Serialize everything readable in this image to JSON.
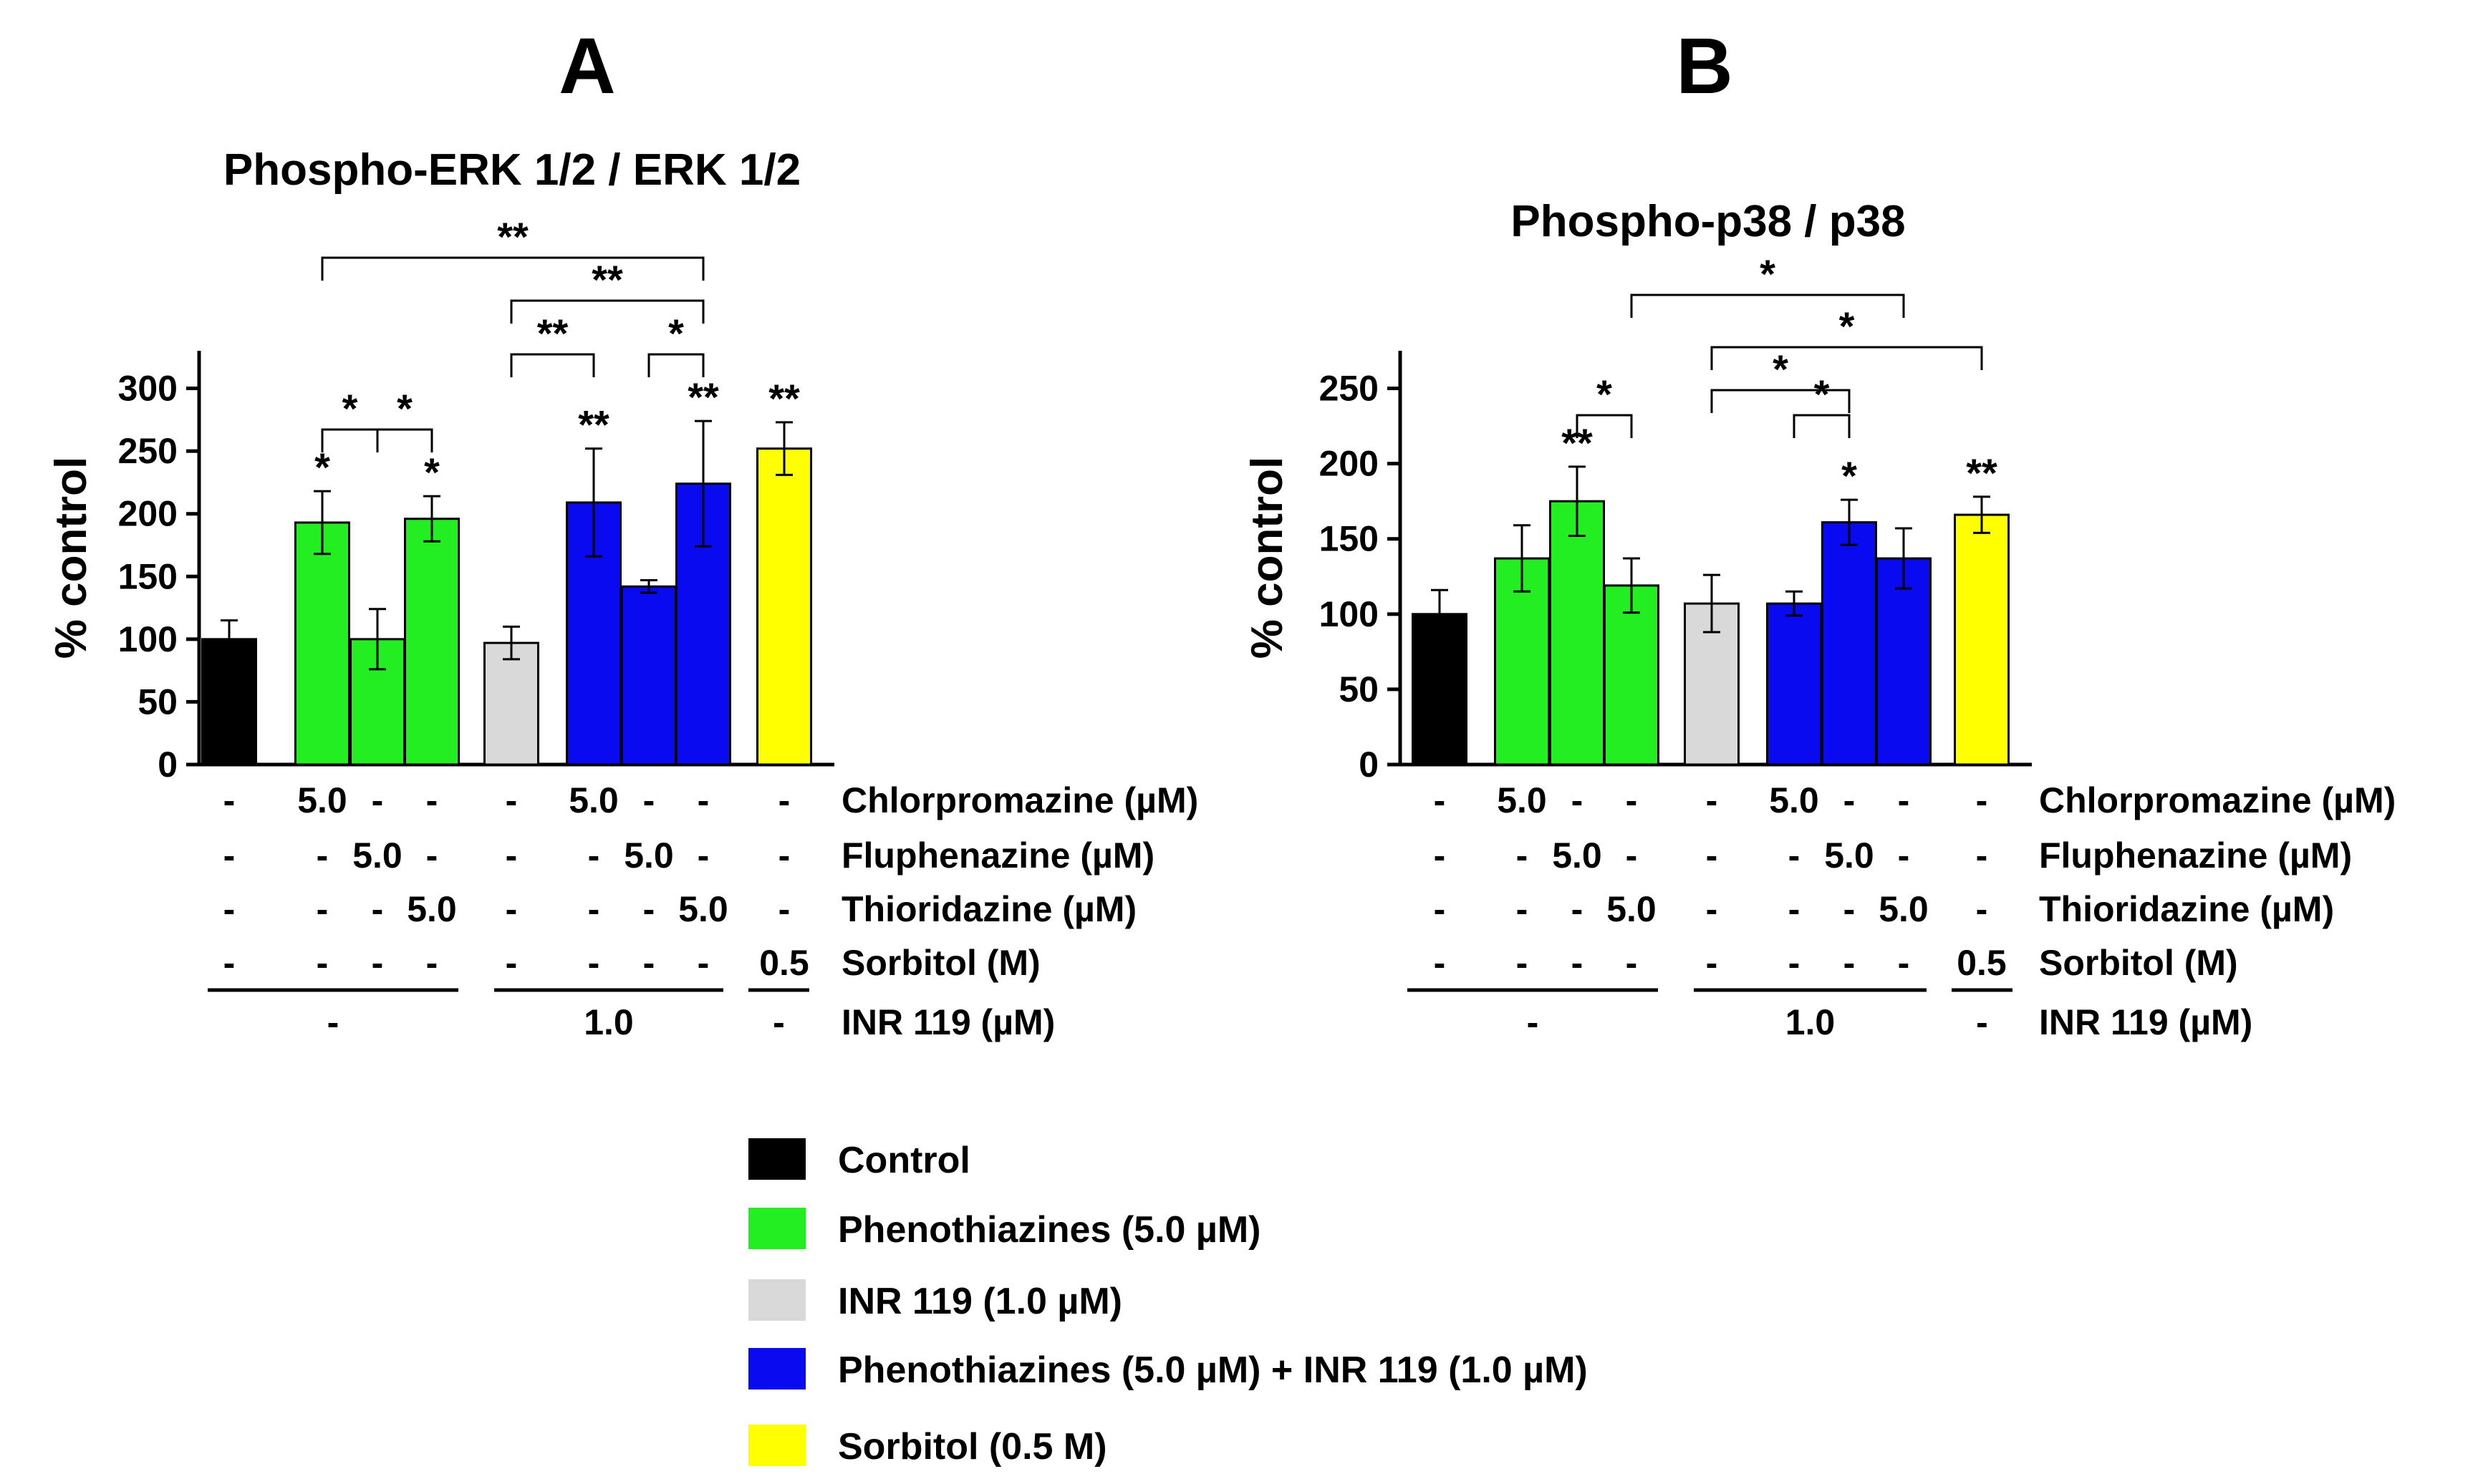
{
  "chart_data": [
    {
      "panel": "A",
      "type": "bar",
      "title": "Phospho-ERK 1/2 / ERK 1/2",
      "ylabel": "% control",
      "ylim": [
        0,
        330
      ],
      "yticks": [
        0,
        50,
        100,
        150,
        200,
        250,
        300
      ],
      "values": [
        100,
        193,
        100,
        196,
        97,
        209,
        142,
        224,
        252
      ],
      "errors": [
        15,
        25,
        24,
        18,
        13,
        43,
        5,
        50,
        21
      ],
      "groups": [
        "control",
        "phenothiazines",
        "phenothiazines",
        "phenothiazines",
        "inr119",
        "combo",
        "combo",
        "combo",
        "sorbitol"
      ],
      "bar_sig": [
        "",
        "*",
        "",
        "*",
        "",
        "**",
        "",
        "**",
        "**"
      ],
      "brackets": [
        {
          "from": 1,
          "to": 2,
          "level": 1,
          "label": "*"
        },
        {
          "from": 2,
          "to": 3,
          "level": 1,
          "label": "*"
        },
        {
          "from": 4,
          "to": 5,
          "level": 2,
          "label": "**"
        },
        {
          "from": 6,
          "to": 7,
          "level": 2,
          "label": "*"
        },
        {
          "from": 4,
          "to": 7,
          "level": 3,
          "label": "**"
        },
        {
          "from": 1,
          "to": 7,
          "level": 4,
          "label": "**"
        }
      ],
      "conditions": [
        {
          "label": "Chlorpromazine (µM)",
          "values": [
            "-",
            "5.0",
            "-",
            "-",
            "-",
            "5.0",
            "-",
            "-",
            "-"
          ]
        },
        {
          "label": "Fluphenazine (µM)",
          "values": [
            "-",
            "-",
            "5.0",
            "-",
            "-",
            "-",
            "5.0",
            "-",
            "-"
          ]
        },
        {
          "label": "Thioridazine (µM)",
          "values": [
            "-",
            "-",
            "-",
            "5.0",
            "-",
            "-",
            "-",
            "5.0",
            "-"
          ]
        },
        {
          "label": "Sorbitol (M)",
          "values": [
            "-",
            "-",
            "-",
            "-",
            "-",
            "-",
            "-",
            "-",
            "0.5"
          ]
        }
      ],
      "inr": {
        "label": "INR 119 (µM)",
        "values": [
          "-",
          "1.0",
          "-"
        ]
      }
    },
    {
      "panel": "B",
      "type": "bar",
      "title": "Phospho-p38 / p38",
      "ylabel": "% control",
      "ylim": [
        0,
        275
      ],
      "yticks": [
        0,
        50,
        100,
        150,
        200,
        250
      ],
      "values": [
        100,
        137,
        175,
        119,
        107,
        107,
        161,
        137,
        166
      ],
      "errors": [
        16,
        22,
        23,
        18,
        19,
        8,
        15,
        20,
        12
      ],
      "groups": [
        "control",
        "phenothiazines",
        "phenothiazines",
        "phenothiazines",
        "inr119",
        "combo",
        "combo",
        "combo",
        "sorbitol"
      ],
      "bar_sig": [
        "",
        "",
        "**",
        "",
        "",
        "",
        "*",
        "",
        "**"
      ],
      "brackets": [
        {
          "from": 2,
          "to": 3,
          "level": 1,
          "label": "*"
        },
        {
          "from": 5,
          "to": 6,
          "level": 1,
          "label": "*"
        },
        {
          "from": 4,
          "to": 6,
          "level": 2,
          "label": "*"
        },
        {
          "from": 4,
          "to": 8,
          "level": 3,
          "label": "*"
        },
        {
          "from": 3,
          "to": 7,
          "level": 4,
          "label": "*"
        }
      ],
      "conditions": [
        {
          "label": "Chlorpromazine (µM)",
          "values": [
            "-",
            "5.0",
            "-",
            "-",
            "-",
            "5.0",
            "-",
            "-",
            "-"
          ]
        },
        {
          "label": "Fluphenazine (µM)",
          "values": [
            "-",
            "-",
            "5.0",
            "-",
            "-",
            "-",
            "5.0",
            "-",
            "-"
          ]
        },
        {
          "label": "Thioridazine (µM)",
          "values": [
            "-",
            "-",
            "-",
            "5.0",
            "-",
            "-",
            "-",
            "5.0",
            "-"
          ]
        },
        {
          "label": "Sorbitol (M)",
          "values": [
            "-",
            "-",
            "-",
            "-",
            "-",
            "-",
            "-",
            "-",
            "0.5"
          ]
        }
      ],
      "inr": {
        "label": "INR 119 (µM)",
        "values": [
          "-",
          "1.0",
          "-"
        ]
      }
    }
  ],
  "colors": {
    "control": "#000000",
    "phenothiazines": "#22ee22",
    "inr119": "#d9d9d9",
    "combo": "#0a0af0",
    "sorbitol": "#ffff00"
  },
  "legend": [
    {
      "group": "control",
      "label": "Control"
    },
    {
      "group": "phenothiazines",
      "label": "Phenothiazines (5.0 µM)"
    },
    {
      "group": "inr119",
      "label": "INR 119 (1.0 µM)"
    },
    {
      "group": "combo",
      "label": "Phenothiazines (5.0 µM) + INR 119 (1.0 µM)"
    },
    {
      "group": "sorbitol",
      "label": "Sorbitol (0.5 M)"
    }
  ]
}
